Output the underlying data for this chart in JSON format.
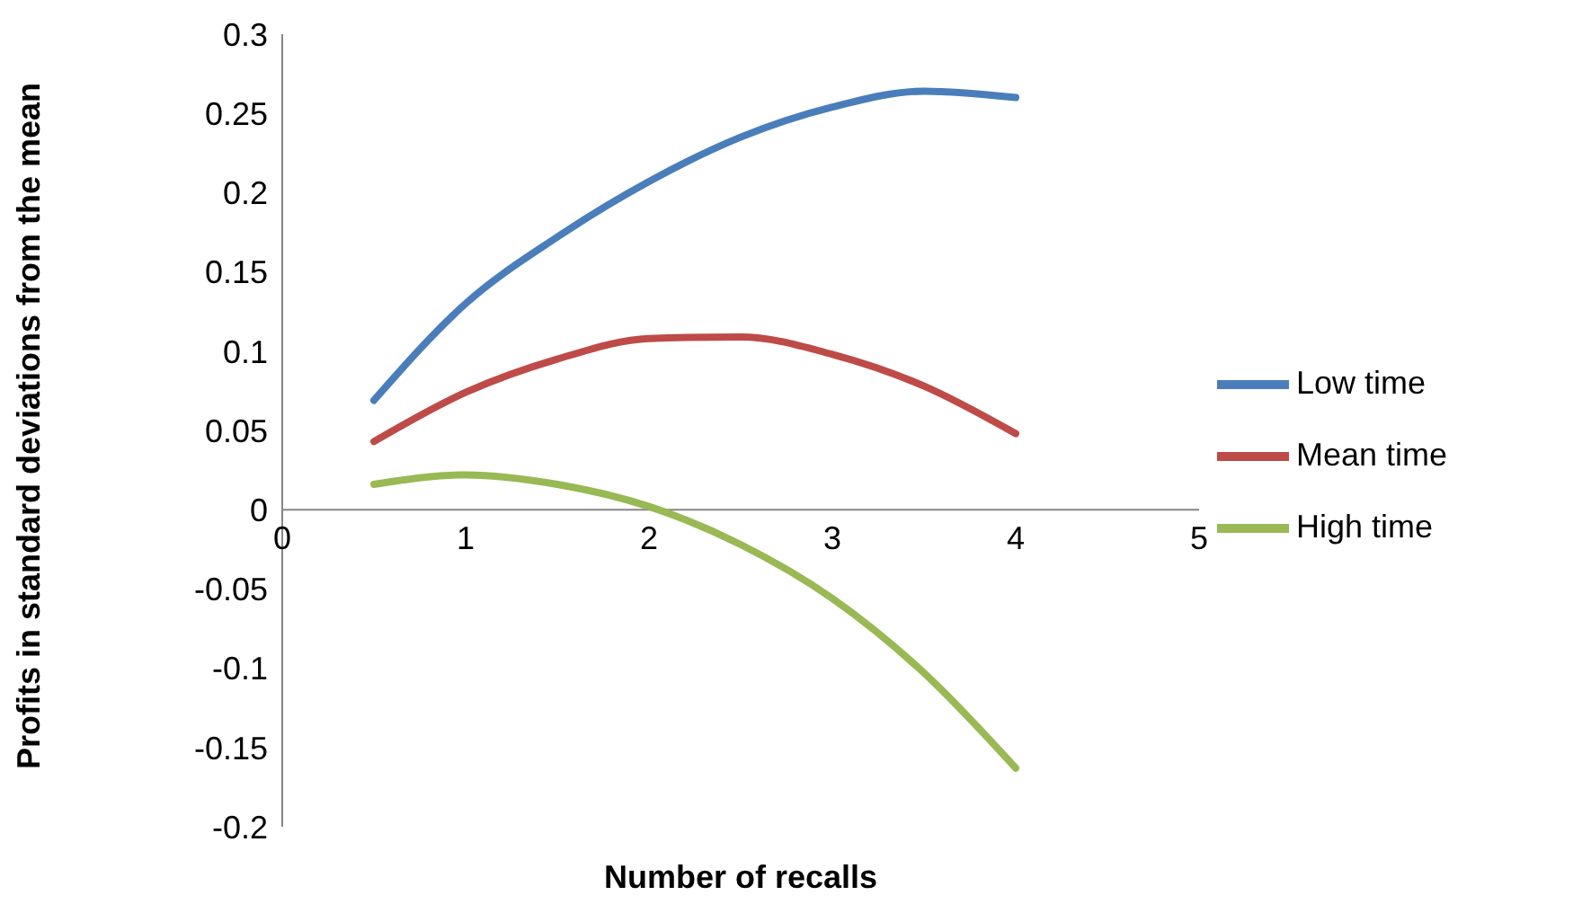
{
  "chart_data": {
    "type": "line",
    "xlabel": "Number of recalls",
    "ylabel": "Profits in standard deviations from the mean",
    "x": [
      0.5,
      1,
      1.5,
      2,
      2.5,
      3,
      3.5,
      4
    ],
    "series": [
      {
        "name": "Low time",
        "color": "#4a7ebb",
        "values": [
          0.069,
          0.13,
          0.172,
          0.207,
          0.235,
          0.254,
          0.264,
          0.26
        ]
      },
      {
        "name": "Mean time",
        "color": "#be4b48",
        "values": [
          0.043,
          0.074,
          0.095,
          0.108,
          0.109,
          0.098,
          0.078,
          0.048
        ]
      },
      {
        "name": "High time",
        "color": "#98b954",
        "values": [
          0.016,
          0.022,
          0.016,
          0.002,
          -0.022,
          -0.056,
          -0.103,
          -0.163
        ]
      }
    ],
    "xlim": [
      0,
      5
    ],
    "xticks": [
      0,
      1,
      2,
      3,
      4,
      5
    ],
    "ylim": [
      -0.2,
      0.3
    ],
    "yticks": [
      -0.2,
      -0.15,
      -0.1,
      -0.05,
      0,
      0.05,
      0.1,
      0.15,
      0.2,
      0.25,
      0.3
    ],
    "grid": false,
    "legend": "right",
    "marker": "none",
    "line_style": "solid"
  }
}
